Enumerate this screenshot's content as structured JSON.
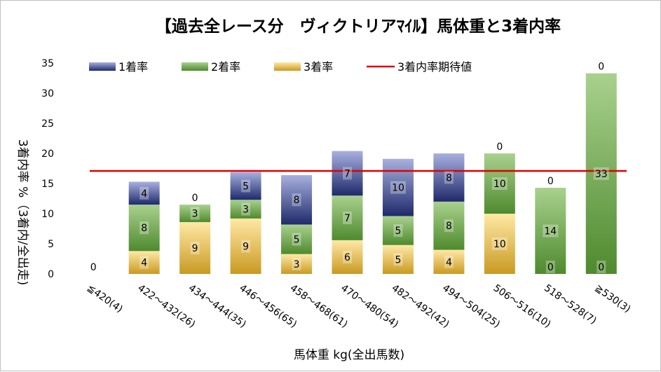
{
  "chart_data": {
    "type": "bar",
    "stacked": true,
    "title": "【過去全レース分　ヴィクトリアﾏｲﾙ】馬体重と3着内率",
    "xlabel": "馬体重 kg(全出馬数)",
    "ylabel": "3着内率 %（3着内/全出走)",
    "ylim": [
      0,
      35
    ],
    "yticks": [
      0,
      5,
      10,
      15,
      20,
      25,
      30,
      35
    ],
    "grid": false,
    "legend_position": "top",
    "categories": [
      "≦420(4)",
      "422～432(26)",
      "434～444(35)",
      "446～456(65)",
      "458～468(61)",
      "470～480(54)",
      "482～492(42)",
      "494～504(25)",
      "506～516(10)",
      "518～528(7)",
      "≧530(3)"
    ],
    "series": [
      {
        "name": "3着率",
        "color": "#f2c14e",
        "values": [
          0,
          3.8,
          8.6,
          9.2,
          3.3,
          5.6,
          4.8,
          4.0,
          10.0,
          0,
          0
        ],
        "labels": [
          "0",
          "4",
          "9",
          "9",
          "3",
          "6",
          "5",
          "4",
          "10",
          "0",
          "0"
        ]
      },
      {
        "name": "2着率",
        "color": "#70ad47",
        "values": [
          0,
          7.7,
          2.9,
          3.1,
          4.9,
          7.4,
          4.8,
          8.0,
          10.0,
          14.3,
          33.3
        ],
        "labels": [
          "",
          "8",
          "3",
          "3",
          "5",
          "7",
          "5",
          "8",
          "10",
          "14",
          "33"
        ]
      },
      {
        "name": "1着率",
        "color": "#4a5aa8",
        "values": [
          0,
          3.8,
          0,
          4.6,
          8.2,
          7.4,
          9.5,
          8.0,
          0,
          0,
          0
        ],
        "labels": [
          "",
          "4",
          "0",
          "5",
          "8",
          "7",
          "10",
          "8",
          "0",
          "0",
          "0"
        ]
      }
    ],
    "reference_line": {
      "name": "3着内率期待値",
      "value": 17.1,
      "color": "#e00000"
    }
  }
}
